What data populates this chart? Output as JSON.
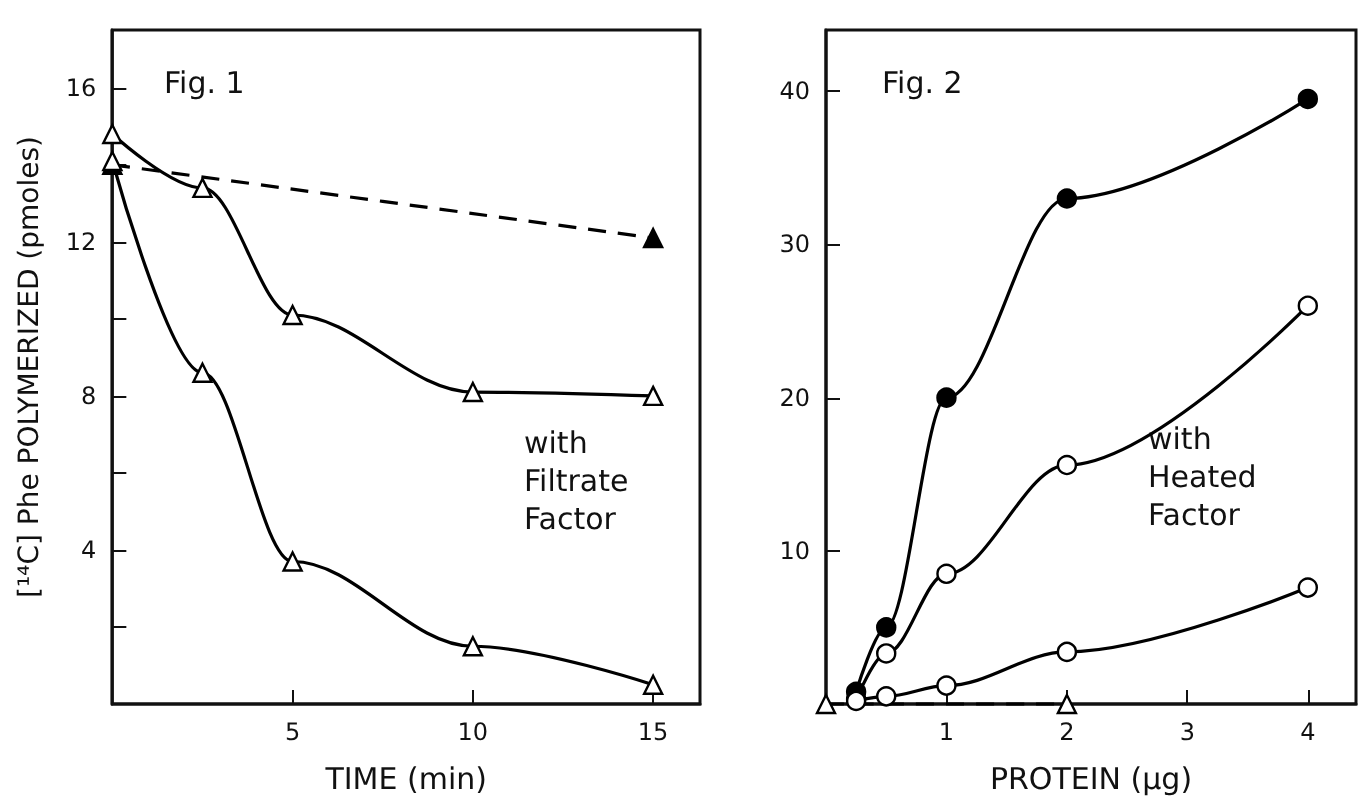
{
  "chart_data": [
    {
      "type": "line",
      "xlabel": "TIME (min)",
      "ylabel": "[¹⁴C] Phe POLYMERIZED (pmoles)",
      "annotations": [
        "Fig. 1",
        "with\nFiltrate\nFactor"
      ],
      "xlim": [
        0,
        16.3
      ],
      "xticks": [
        5,
        10,
        15
      ],
      "ylim": [
        0,
        17.5
      ],
      "yticks": [
        {
          "value": 2,
          "label": null
        },
        4,
        {
          "value": 6,
          "label": null
        },
        8,
        {
          "value": 10,
          "label": null
        },
        12,
        {
          "value": 14,
          "label": null
        },
        16
      ],
      "grid": false,
      "series": [
        {
          "color": "#000000",
          "colors": [
            "#000000",
            "#000000"
          ],
          "marker": "triangle",
          "line_style": "dashed",
          "x": [
            0,
            15
          ],
          "values": [
            14.0,
            12.1
          ]
        },
        {
          "color": "#000000",
          "colors": [
            "#ffffff",
            "#ffffff",
            "#ffffff",
            "#ffffff",
            "#ffffff"
          ],
          "marker": "triangle",
          "line_style": "solid",
          "x": [
            0,
            2.5,
            5,
            10,
            15
          ],
          "values": [
            14.8,
            13.4,
            10.1,
            8.1,
            8.0
          ]
        },
        {
          "color": "#000000",
          "colors": [
            "#ffffff",
            "#ffffff",
            "#ffffff",
            "#ffffff",
            "#ffffff"
          ],
          "marker": "triangle",
          "line_style": "solid",
          "x": [
            0,
            2.5,
            5,
            10,
            15
          ],
          "values": [
            14.1,
            8.6,
            3.7,
            1.5,
            0.5
          ]
        }
      ]
    },
    {
      "type": "line",
      "xlabel": "PROTEIN (μg)",
      "annotations": [
        "Fig. 2",
        "with\nHeated\nFactor"
      ],
      "xlim": [
        0,
        4.4
      ],
      "xticks": [
        1,
        2,
        3,
        4
      ],
      "ylim": [
        0,
        44
      ],
      "yticks": [
        10,
        20,
        30,
        40
      ],
      "grid": false,
      "series": [
        {
          "color": "#000000",
          "colors": [
            "#000000",
            "#000000",
            "#000000",
            "#000000",
            "#000000"
          ],
          "marker": "circle",
          "line_style": "solid",
          "x": [
            0.25,
            0.5,
            1,
            2,
            4
          ],
          "values": [
            0.8,
            5,
            20,
            33,
            39.5
          ]
        },
        {
          "color": "#000000",
          "colors": [
            "#ffffff",
            "#ffffff",
            "#ffffff",
            "#ffffff",
            "#ffffff"
          ],
          "marker": "circle",
          "line_style": "solid",
          "x": [
            0.25,
            0.5,
            1,
            2,
            4
          ],
          "values": [
            0.3,
            3.3,
            8.5,
            15.6,
            26
          ]
        },
        {
          "color": "#000000",
          "colors": [
            "#ffffff",
            "#ffffff",
            "#ffffff",
            "#ffffff",
            "#ffffff"
          ],
          "marker": "circle",
          "line_style": "solid",
          "x": [
            0.25,
            0.5,
            1,
            2,
            4
          ],
          "values": [
            0.2,
            0.5,
            1.2,
            3.4,
            7.6
          ]
        },
        {
          "color": "#000000",
          "colors": [
            "#ffffff",
            "#ffffff"
          ],
          "marker": "triangle",
          "line_style": "dashed",
          "x": [
            0,
            2
          ],
          "values": [
            0,
            0
          ]
        }
      ]
    }
  ]
}
